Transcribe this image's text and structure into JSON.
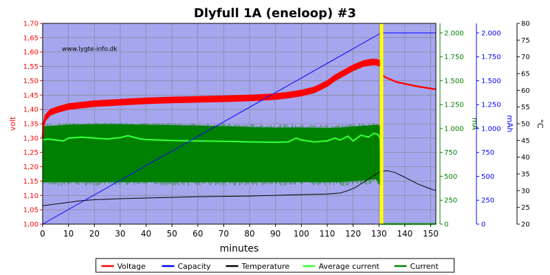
{
  "chart_data": {
    "type": "line",
    "title": "Dlyfull 1A (eneloop) #3",
    "watermark": "www.lygte-info.dk",
    "xlabel": "minutes",
    "xlim": [
      0,
      152
    ],
    "xticks": [
      0,
      10,
      20,
      30,
      40,
      50,
      60,
      70,
      80,
      90,
      100,
      110,
      120,
      130,
      140,
      150
    ],
    "grid": true,
    "legend_position": "bottom",
    "plot_background": "#a6a6ee",
    "charge_end_marker_x": 131,
    "charge_end_marker_color": "#ffff00",
    "axes": {
      "volt": {
        "label": "volt",
        "color": "#ff0000",
        "side": "left",
        "range": [
          1.0,
          1.7
        ],
        "ticks": [
          "1,00",
          "1,05",
          "1,10",
          "1,15",
          "1,20",
          "1,25",
          "1,30",
          "1,35",
          "1,40",
          "1,45",
          "1,50",
          "1,55",
          "1,60",
          "1,65",
          "1,70"
        ]
      },
      "ma": {
        "label": "mA",
        "color": "#008000",
        "side": "right",
        "range": [
          0,
          2100
        ],
        "ticks": [
          "0",
          "250",
          "500",
          "750",
          "1.000",
          "1.250",
          "1.500",
          "1.750",
          "2.000"
        ]
      },
      "mah": {
        "label": "mAh",
        "color": "#0000ff",
        "side": "right",
        "range": [
          0,
          2100
        ],
        "ticks": [
          "0",
          "250",
          "500",
          "750",
          "1.000",
          "1.250",
          "1.500",
          "1.750",
          "2.000"
        ]
      },
      "temp": {
        "label": "°C",
        "color": "#000000",
        "side": "right",
        "range": [
          20,
          80
        ],
        "ticks": [
          "20",
          "25",
          "30",
          "35",
          "40",
          "45",
          "50",
          "55",
          "60",
          "65",
          "70",
          "75",
          "80"
        ]
      }
    },
    "series": [
      {
        "name": "Voltage",
        "axis": "volt",
        "color": "#ff0000",
        "band": true,
        "x": [
          0,
          1,
          3,
          6,
          10,
          20,
          30,
          40,
          50,
          60,
          70,
          80,
          85,
          90,
          95,
          100,
          105,
          110,
          113,
          116,
          120,
          124,
          127,
          129,
          130.5,
          131,
          133,
          137,
          145,
          152
        ],
        "y": [
          1.33,
          1.37,
          1.39,
          1.4,
          1.41,
          1.42,
          1.425,
          1.43,
          1.433,
          1.435,
          1.437,
          1.44,
          1.442,
          1.445,
          1.45,
          1.457,
          1.468,
          1.49,
          1.51,
          1.525,
          1.545,
          1.56,
          1.565,
          1.565,
          1.56,
          1.52,
          1.51,
          1.495,
          1.48,
          1.47
        ],
        "band_width": [
          0.02,
          0.02,
          0.02,
          0.02,
          0.02,
          0.02,
          0.02,
          0.02,
          0.02,
          0.02,
          0.02,
          0.02,
          0.02,
          0.02,
          0.02,
          0.02,
          0.02,
          0.02,
          0.02,
          0.02,
          0.02,
          0.02,
          0.02,
          0.02,
          0.02,
          0.003,
          0.003,
          0.003,
          0.003,
          0.003
        ]
      },
      {
        "name": "Capacity",
        "axis": "mah",
        "color": "#0000ff",
        "x": [
          0,
          130.5,
          131,
          152
        ],
        "y": [
          0,
          1995,
          2000,
          2000
        ]
      },
      {
        "name": "Temperature",
        "axis": "temp",
        "color": "#000000",
        "x": [
          0,
          5,
          10,
          15,
          20,
          30,
          40,
          50,
          60,
          70,
          80,
          90,
          100,
          110,
          115,
          118,
          121,
          124,
          127,
          130,
          133,
          136,
          140,
          145,
          150,
          152
        ],
        "y": [
          25.5,
          26.0,
          26.5,
          27.0,
          27.3,
          27.6,
          27.8,
          28.0,
          28.2,
          28.3,
          28.4,
          28.6,
          28.8,
          29.0,
          29.3,
          30.0,
          31.0,
          32.5,
          34.0,
          35.5,
          36.0,
          35.5,
          34.0,
          32.0,
          30.5,
          30.0
        ]
      },
      {
        "name": "Average current",
        "axis": "ma",
        "color": "#33ff33",
        "x": [
          0,
          2,
          5,
          8,
          10,
          15,
          20,
          25,
          30,
          33,
          35,
          38,
          40,
          45,
          50,
          55,
          60,
          65,
          70,
          75,
          80,
          85,
          90,
          95,
          98,
          100,
          105,
          110,
          113,
          115,
          118,
          120,
          123,
          126,
          128,
          129.5,
          130.5,
          130.8,
          131,
          152
        ],
        "y": [
          880,
          890,
          880,
          870,
          900,
          910,
          900,
          890,
          905,
          925,
          910,
          890,
          885,
          880,
          875,
          872,
          870,
          868,
          866,
          864,
          860,
          858,
          856,
          860,
          900,
          880,
          860,
          870,
          900,
          880,
          920,
          870,
          930,
          910,
          950,
          940,
          900,
          600,
          0,
          0
        ]
      },
      {
        "name": "Current",
        "axis": "ma",
        "color": "#008000",
        "band": true,
        "x": [
          0,
          10,
          20,
          30,
          40,
          50,
          60,
          70,
          80,
          90,
          100,
          110,
          115,
          120,
          125,
          129,
          130.5,
          131,
          152
        ],
        "y_high": [
          1020,
          1040,
          1045,
          1045,
          1040,
          1035,
          1030,
          1025,
          1015,
          1010,
          1010,
          1005,
          1010,
          1020,
          1030,
          1040,
          1030,
          0,
          0
        ],
        "y_low": [
          440,
          440,
          440,
          440,
          440,
          440,
          440,
          440,
          440,
          440,
          440,
          440,
          440,
          450,
          460,
          470,
          400,
          0,
          0
        ],
        "spike_low": 400,
        "spike_high": 1070
      }
    ]
  }
}
